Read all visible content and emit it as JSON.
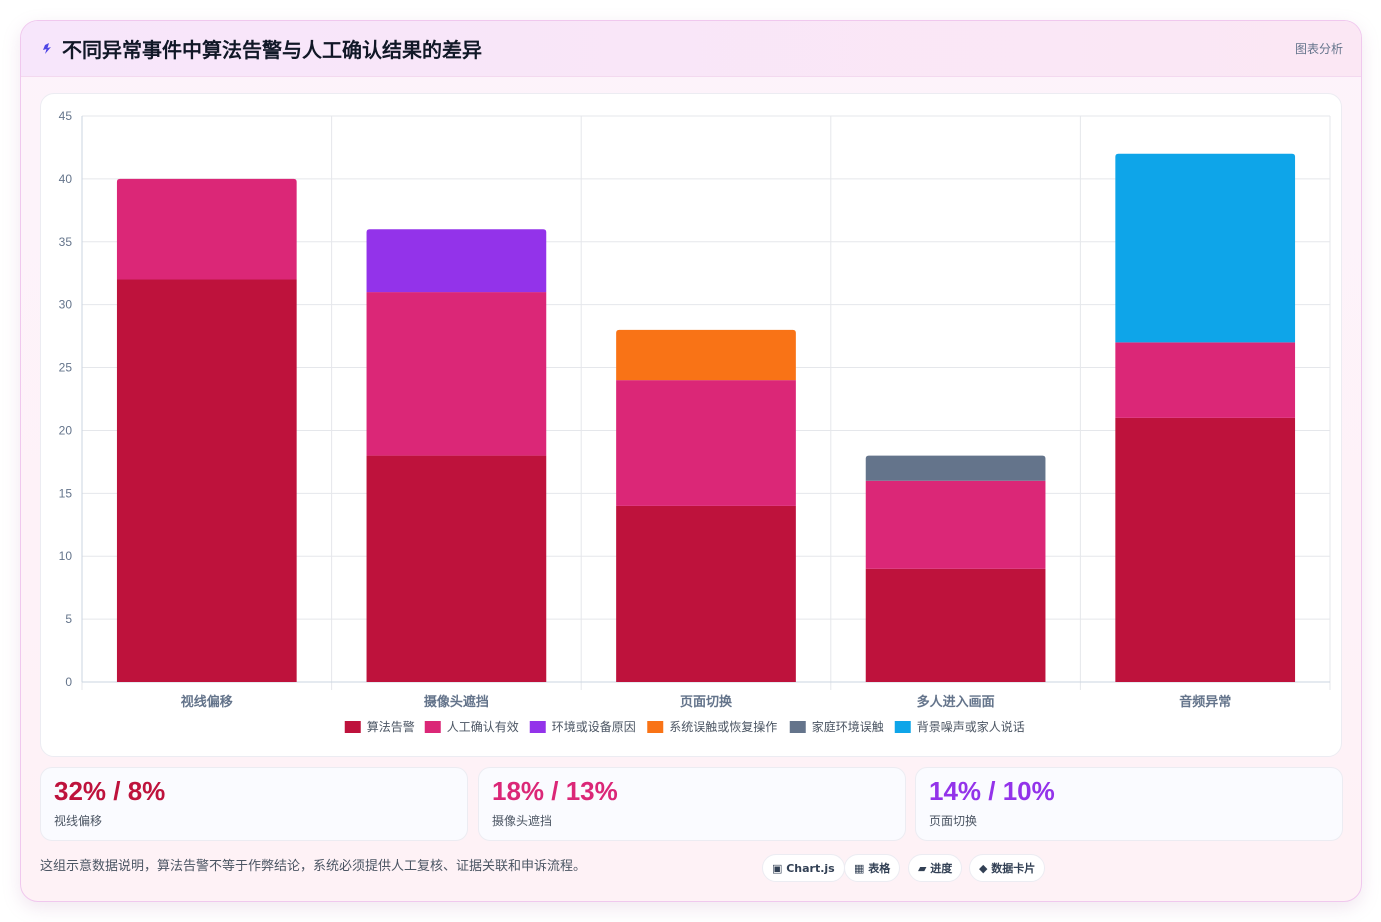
{
  "header": {
    "icon": "lightning-icon",
    "title": "不同异常事件中算法告警与人工确认结果的差异",
    "link_label": "图表分析"
  },
  "chart_data": {
    "type": "bar",
    "stacked": true,
    "categories": [
      "视线偏移",
      "摄像头遮挡",
      "页面切换",
      "多人进入画面",
      "音频异常"
    ],
    "series": [
      {
        "name": "算法告警",
        "color": "#be123c",
        "values": [
          32,
          18,
          14,
          9,
          21
        ]
      },
      {
        "name": "人工确认有效",
        "color": "#db2777",
        "values": [
          8,
          13,
          10,
          7,
          6
        ]
      },
      {
        "name": "环境或设备原因",
        "color": "#9333ea",
        "values": [
          0,
          5,
          0,
          0,
          0
        ]
      },
      {
        "name": "系统误触或恢复操作",
        "color": "#f97316",
        "values": [
          0,
          0,
          4,
          0,
          0
        ]
      },
      {
        "name": "家庭环境误触",
        "color": "#64748b",
        "values": [
          0,
          0,
          0,
          2,
          0
        ]
      },
      {
        "name": "背景噪声或家人说话",
        "color": "#0ea5e9",
        "values": [
          0,
          0,
          0,
          0,
          15
        ]
      }
    ],
    "ylim": [
      0,
      45
    ],
    "yticks": [
      0,
      5,
      10,
      15,
      20,
      25,
      30,
      35,
      40,
      45
    ],
    "grid": true,
    "legend_position": "bottom"
  },
  "stats": [
    {
      "value": "32% / 8%",
      "label": "视线偏移",
      "color": "#be123c"
    },
    {
      "value": "18% / 13%",
      "label": "摄像头遮挡",
      "color": "#db2777"
    },
    {
      "value": "14% / 10%",
      "label": "页面切换",
      "color": "#9333ea"
    }
  ],
  "footnote": "这组示意数据说明，算法告警不等于作弊结论，系统必须提供人工复核、证据关联和申诉流程。",
  "chips": [
    {
      "label": "▣ Chart.js",
      "icon": "chart-icon"
    },
    {
      "label": "▦ 表格",
      "icon": "table-icon"
    },
    {
      "label": "▰ 进度",
      "icon": "progress-icon"
    },
    {
      "label": "◆ 数据卡片",
      "icon": "card-icon"
    }
  ],
  "colors": {
    "accent": "#be123c",
    "card_border": "#f0c8ee",
    "grid": "#e5e7eb"
  }
}
